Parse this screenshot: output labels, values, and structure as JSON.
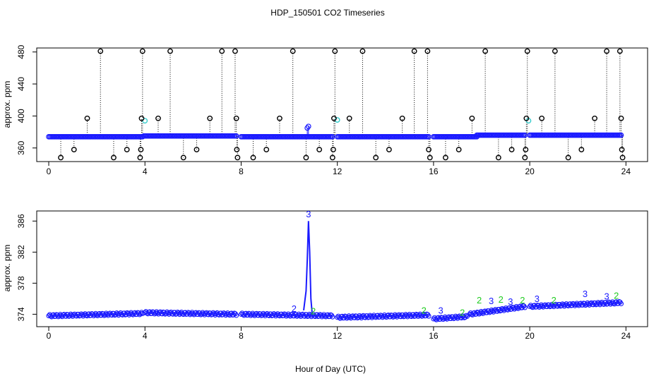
{
  "figure": {
    "title": "HDP_150501  CO2 Timeseries",
    "xlabel": "Hour of Day (UTC)"
  },
  "chart_data": [
    {
      "type": "scatter",
      "title": "",
      "ylabel": "approx. ppm",
      "xlim": [
        -0.5,
        24.9
      ],
      "ylim": [
        343,
        485
      ],
      "xticks": [
        0,
        4,
        8,
        12,
        16,
        20,
        24
      ],
      "yticks": [
        360,
        400,
        440,
        480
      ],
      "colors": {
        "baseline": "#1a1aff",
        "outlier": "#000000",
        "flag": "#33cccc"
      },
      "baseline": [
        {
          "x_start": 0.0,
          "x_end": 3.9,
          "y": 374
        },
        {
          "x_start": 3.95,
          "x_end": 7.8,
          "y": 375
        },
        {
          "x_start": 8.0,
          "x_end": 11.8,
          "y": 374
        },
        {
          "x_start": 12.0,
          "x_end": 15.8,
          "y": 374
        },
        {
          "x_start": 16.0,
          "x_end": 17.8,
          "y": 374
        },
        {
          "x_start": 17.8,
          "x_end": 19.8,
          "y": 376
        },
        {
          "x_start": 20.0,
          "x_end": 23.8,
          "y": 376
        }
      ],
      "outliers": [
        {
          "x": 0.5,
          "y": 348
        },
        {
          "x": 1.05,
          "y": 358
        },
        {
          "x": 1.6,
          "y": 397
        },
        {
          "x": 2.15,
          "y": 481
        },
        {
          "x": 2.7,
          "y": 348
        },
        {
          "x": 3.25,
          "y": 358
        },
        {
          "x": 3.8,
          "y": 348
        },
        {
          "x": 3.83,
          "y": 358
        },
        {
          "x": 3.86,
          "y": 397
        },
        {
          "x": 3.9,
          "y": 481
        },
        {
          "x": 4.55,
          "y": 397
        },
        {
          "x": 5.05,
          "y": 481
        },
        {
          "x": 5.6,
          "y": 348
        },
        {
          "x": 6.15,
          "y": 358
        },
        {
          "x": 6.7,
          "y": 397
        },
        {
          "x": 7.2,
          "y": 481
        },
        {
          "x": 7.75,
          "y": 481
        },
        {
          "x": 7.8,
          "y": 397
        },
        {
          "x": 7.82,
          "y": 358
        },
        {
          "x": 7.85,
          "y": 348
        },
        {
          "x": 8.5,
          "y": 348
        },
        {
          "x": 9.05,
          "y": 358
        },
        {
          "x": 9.6,
          "y": 397
        },
        {
          "x": 10.15,
          "y": 481
        },
        {
          "x": 10.7,
          "y": 348
        },
        {
          "x": 11.25,
          "y": 358
        },
        {
          "x": 11.8,
          "y": 348
        },
        {
          "x": 11.83,
          "y": 358
        },
        {
          "x": 11.86,
          "y": 397
        },
        {
          "x": 11.9,
          "y": 481
        },
        {
          "x": 12.5,
          "y": 397
        },
        {
          "x": 13.05,
          "y": 481
        },
        {
          "x": 13.6,
          "y": 348
        },
        {
          "x": 14.15,
          "y": 358
        },
        {
          "x": 14.7,
          "y": 397
        },
        {
          "x": 15.2,
          "y": 481
        },
        {
          "x": 15.75,
          "y": 481
        },
        {
          "x": 15.8,
          "y": 358
        },
        {
          "x": 15.85,
          "y": 348
        },
        {
          "x": 16.5,
          "y": 348
        },
        {
          "x": 17.05,
          "y": 358
        },
        {
          "x": 17.6,
          "y": 397
        },
        {
          "x": 18.15,
          "y": 481
        },
        {
          "x": 18.7,
          "y": 348
        },
        {
          "x": 19.25,
          "y": 358
        },
        {
          "x": 19.8,
          "y": 348
        },
        {
          "x": 19.83,
          "y": 358
        },
        {
          "x": 19.86,
          "y": 397
        },
        {
          "x": 19.9,
          "y": 481
        },
        {
          "x": 20.5,
          "y": 397
        },
        {
          "x": 21.05,
          "y": 481
        },
        {
          "x": 21.6,
          "y": 348
        },
        {
          "x": 22.15,
          "y": 358
        },
        {
          "x": 22.7,
          "y": 397
        },
        {
          "x": 23.2,
          "y": 481
        },
        {
          "x": 23.75,
          "y": 481
        },
        {
          "x": 23.8,
          "y": 397
        },
        {
          "x": 23.83,
          "y": 358
        },
        {
          "x": 23.86,
          "y": 348
        }
      ],
      "flagged": [
        {
          "x": 4.0,
          "y": 394
        },
        {
          "x": 12.0,
          "y": 395
        },
        {
          "x": 19.95,
          "y": 394
        }
      ],
      "spike": [
        {
          "x": 10.75,
          "y": 385
        },
        {
          "x": 10.8,
          "y": 387
        }
      ]
    },
    {
      "type": "scatter",
      "title": "",
      "ylabel": "approx. ppm",
      "xlim": [
        -0.5,
        24.9
      ],
      "ylim": [
        372.4,
        387.3
      ],
      "xticks": [
        0,
        4,
        8,
        12,
        16,
        20,
        24
      ],
      "yticks": [
        374,
        378,
        382,
        386
      ],
      "colors": {
        "series": "#1a1aff",
        "label2": "#22cc22",
        "label3": "#1a1aff"
      },
      "segments": [
        {
          "x_start": 0.0,
          "x_end": 3.9,
          "y_start": 373.8,
          "y_end": 374.1
        },
        {
          "x_start": 4.0,
          "x_end": 7.8,
          "y_start": 374.2,
          "y_end": 374.0
        },
        {
          "x_start": 8.0,
          "x_end": 11.8,
          "y_start": 374.0,
          "y_end": 373.8
        },
        {
          "x_start": 12.0,
          "x_end": 15.8,
          "y_start": 373.6,
          "y_end": 373.9
        },
        {
          "x_start": 16.0,
          "x_end": 17.4,
          "y_start": 373.4,
          "y_end": 373.7
        },
        {
          "x_start": 17.5,
          "x_end": 19.8,
          "y_start": 374.0,
          "y_end": 375.0
        },
        {
          "x_start": 20.0,
          "x_end": 23.8,
          "y_start": 375.0,
          "y_end": 375.5
        }
      ],
      "spike": [
        {
          "x": 10.6,
          "y": 374.5
        },
        {
          "x": 10.7,
          "y": 377.0
        },
        {
          "x": 10.75,
          "y": 381.0
        },
        {
          "x": 10.8,
          "y": 386.0
        },
        {
          "x": 10.85,
          "y": 382.0
        },
        {
          "x": 10.9,
          "y": 376.0
        },
        {
          "x": 10.95,
          "y": 374.2
        }
      ],
      "labels": [
        {
          "text": "3",
          "x": 10.8,
          "y": 386.5,
          "group": "label3"
        },
        {
          "text": "2",
          "x": 10.2,
          "y": 374.3,
          "group": "label3"
        },
        {
          "text": "2",
          "x": 11.0,
          "y": 374.0,
          "group": "label2"
        },
        {
          "text": "2",
          "x": 15.6,
          "y": 374.1,
          "group": "label2"
        },
        {
          "text": "3",
          "x": 16.3,
          "y": 374.1,
          "group": "label3"
        },
        {
          "text": "2",
          "x": 17.2,
          "y": 373.8,
          "group": "label2"
        },
        {
          "text": "2",
          "x": 17.9,
          "y": 375.4,
          "group": "label2"
        },
        {
          "text": "3",
          "x": 18.4,
          "y": 375.3,
          "group": "label3"
        },
        {
          "text": "2",
          "x": 18.8,
          "y": 375.5,
          "group": "label2"
        },
        {
          "text": "3",
          "x": 19.2,
          "y": 375.2,
          "group": "label3"
        },
        {
          "text": "2",
          "x": 19.7,
          "y": 375.4,
          "group": "label2"
        },
        {
          "text": "3",
          "x": 20.3,
          "y": 375.6,
          "group": "label3"
        },
        {
          "text": "2",
          "x": 21.0,
          "y": 375.4,
          "group": "label2"
        },
        {
          "text": "3",
          "x": 22.3,
          "y": 376.2,
          "group": "label3"
        },
        {
          "text": "3",
          "x": 23.2,
          "y": 375.9,
          "group": "label3"
        },
        {
          "text": "2",
          "x": 23.6,
          "y": 376.0,
          "group": "label2"
        }
      ]
    }
  ]
}
